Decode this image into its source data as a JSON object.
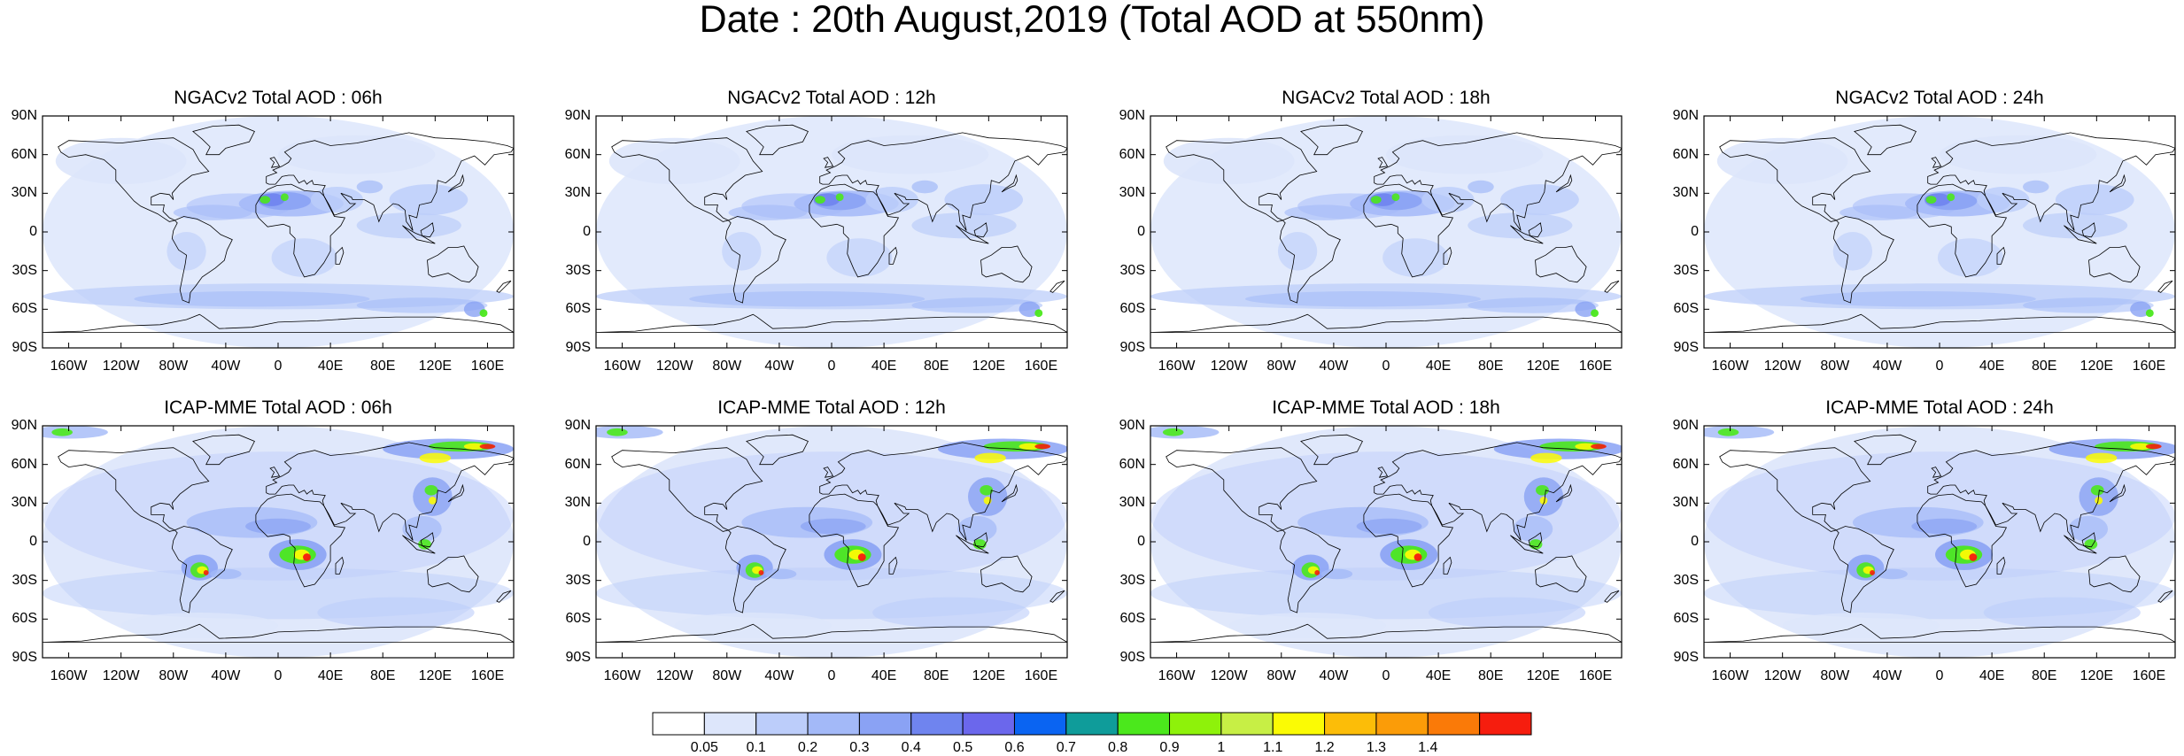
{
  "title": "Date : 20th August,2019 (Total AOD at 550nm)",
  "panels": [
    {
      "title": "NGACv2 Total AOD : 06h",
      "model": "ngac"
    },
    {
      "title": "NGACv2 Total AOD : 12h",
      "model": "ngac"
    },
    {
      "title": "NGACv2 Total AOD : 18h",
      "model": "ngac"
    },
    {
      "title": "NGACv2 Total AOD : 24h",
      "model": "ngac"
    },
    {
      "title": "ICAP-MME Total AOD : 06h",
      "model": "icap"
    },
    {
      "title": "ICAP-MME Total AOD : 12h",
      "model": "icap"
    },
    {
      "title": "ICAP-MME Total AOD : 18h",
      "model": "icap"
    },
    {
      "title": "ICAP-MME Total AOD : 24h",
      "model": "icap"
    }
  ],
  "lat_ticks": [
    "90N",
    "60N",
    "30N",
    "0",
    "30S",
    "60S",
    "90S"
  ],
  "lon_ticks": [
    "160W",
    "120W",
    "80W",
    "40W",
    "0",
    "40E",
    "80E",
    "120E",
    "160E"
  ],
  "colorbar": {
    "labels": [
      "0.05",
      "0.1",
      "0.2",
      "0.3",
      "0.4",
      "0.5",
      "0.6",
      "0.7",
      "0.8",
      "0.9",
      "1",
      "1.1",
      "1.2",
      "1.3",
      "1.4"
    ],
    "colors": [
      "#ffffff",
      "#dde6fb",
      "#bccdfa",
      "#a3b9f8",
      "#8aa2f4",
      "#6f84ef",
      "#6b67ec",
      "#0a64f2",
      "#0f9c9a",
      "#4be81c",
      "#8ef20a",
      "#c7ef45",
      "#fbfb04",
      "#fcbd08",
      "#fb9c08",
      "#fa7a08",
      "#f61d0e"
    ]
  },
  "map_palette": {
    "ocean": "#ffffff",
    "light": "#dde6fb",
    "mid": "#bccdfa",
    "blue": "#a3b9f8",
    "deep": "#8aa2f4",
    "violet": "#6f84ef",
    "green": "#4be81c",
    "yellow": "#fbfb04",
    "orange": "#fb9c08",
    "red": "#f61d0e",
    "coast": "#000000"
  }
}
